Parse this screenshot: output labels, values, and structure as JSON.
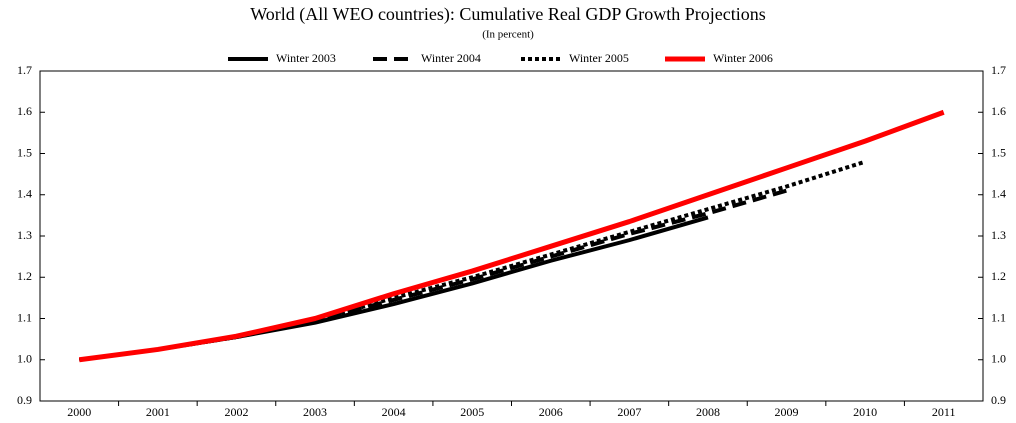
{
  "chart_data": {
    "type": "line",
    "title": "World (All WEO countries): Cumulative Real GDP Growth Projections",
    "subtitle": "(In percent)",
    "categories": [
      "2000",
      "2001",
      "2002",
      "2003",
      "2004",
      "2005",
      "2006",
      "2007",
      "2008",
      "2009",
      "2010",
      "2011"
    ],
    "series": [
      {
        "name": "Winter 2003",
        "color": "#000000",
        "dash": "solid",
        "values": [
          1.0,
          1.025,
          1.055,
          1.09,
          1.135,
          1.185,
          1.24,
          1.29,
          1.345,
          null,
          null,
          null
        ]
      },
      {
        "name": "Winter 2004",
        "color": "#000000",
        "dash": "dashed",
        "values": [
          1.0,
          1.025,
          1.055,
          1.095,
          1.145,
          1.195,
          1.25,
          1.305,
          1.355,
          1.41,
          null,
          null
        ]
      },
      {
        "name": "Winter 2005",
        "color": "#000000",
        "dash": "dotted",
        "values": [
          1.0,
          1.025,
          1.055,
          1.095,
          1.15,
          1.2,
          1.255,
          1.31,
          1.365,
          1.42,
          1.48,
          null
        ]
      },
      {
        "name": "Winter 2006",
        "color": "#ff0000",
        "dash": "solid",
        "values": [
          1.0,
          1.025,
          1.057,
          1.1,
          1.16,
          1.215,
          1.275,
          1.335,
          1.4,
          1.465,
          1.53,
          1.6
        ]
      }
    ],
    "ylim": [
      0.9,
      1.7
    ],
    "yticks": [
      {
        "value": 0.9,
        "label": "0.9"
      },
      {
        "value": 1.0,
        "label": "1.0"
      },
      {
        "value": 1.1,
        "label": "1.1"
      },
      {
        "value": 1.2,
        "label": "1.2"
      },
      {
        "value": 1.3,
        "label": "1.3"
      },
      {
        "value": 1.4,
        "label": "1.4"
      },
      {
        "value": 1.5,
        "label": "1.5"
      },
      {
        "value": 1.6,
        "label": "1.6"
      },
      {
        "value": 1.7,
        "label": "1.7"
      }
    ],
    "y2lim": [
      0.9,
      1.7
    ],
    "y2ticks": [
      {
        "value": 0.9,
        "label": "0.9"
      },
      {
        "value": 1.0,
        "label": "1.0"
      },
      {
        "value": 1.1,
        "label": "1.1"
      },
      {
        "value": 1.2,
        "label": "1.2"
      },
      {
        "value": 1.3,
        "label": "1.3"
      },
      {
        "value": 1.4,
        "label": "1.4"
      },
      {
        "value": 1.5,
        "label": "1.5"
      },
      {
        "value": 1.6,
        "label": "1.6"
      },
      {
        "value": 1.7,
        "label": "1.7"
      }
    ],
    "grid": false,
    "legend": "top"
  }
}
